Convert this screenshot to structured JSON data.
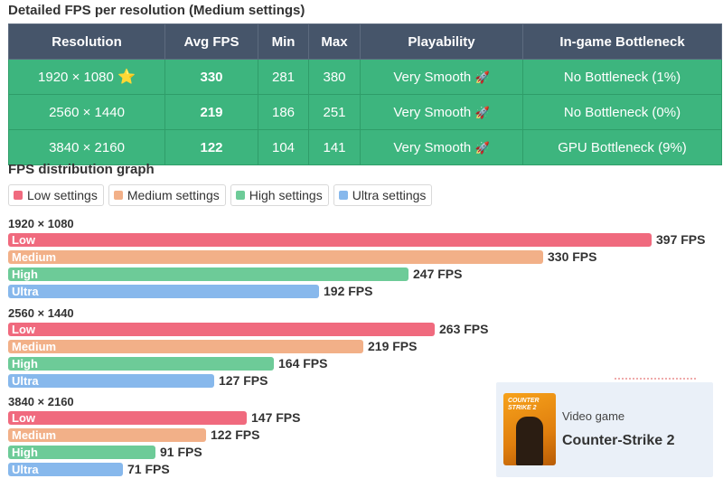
{
  "table_title": "Detailed FPS per resolution (Medium settings)",
  "table": {
    "headers": [
      "Resolution",
      "Avg FPS",
      "Min",
      "Max",
      "Playability",
      "In-game Bottleneck"
    ],
    "rows": [
      {
        "resolution": "1920 × 1080",
        "star": "⭐",
        "avg": "330",
        "min": "281",
        "max": "380",
        "playability": "Very Smooth",
        "rocket": "🚀",
        "bottleneck": "No Bottleneck (1%)"
      },
      {
        "resolution": "2560 × 1440",
        "star": "",
        "avg": "219",
        "min": "186",
        "max": "251",
        "playability": "Very Smooth",
        "rocket": "🚀",
        "bottleneck": "No Bottleneck (0%)"
      },
      {
        "resolution": "3840 × 2160",
        "star": "",
        "avg": "122",
        "min": "104",
        "max": "141",
        "playability": "Very Smooth",
        "rocket": "🚀",
        "bottleneck": "GPU Bottleneck (9%)"
      }
    ]
  },
  "graph_title": "FPS distribution graph",
  "colors": {
    "low": "#f06a7e",
    "medium": "#f2b088",
    "high": "#6dcb98",
    "ultra": "#87b8ec",
    "header": "#46556a",
    "row": "#3db57e"
  },
  "chart_data": {
    "type": "bar",
    "orientation": "horizontal",
    "title": "FPS distribution graph",
    "legend": [
      "Low settings",
      "Medium settings",
      "High settings",
      "Ultra settings"
    ],
    "legend_position": "top-left",
    "value_suffix": " FPS",
    "groups": [
      {
        "label": "1920 × 1080",
        "bars": [
          {
            "setting": "Low",
            "key": "low",
            "value": 397
          },
          {
            "setting": "Medium",
            "key": "medium",
            "value": 330
          },
          {
            "setting": "High",
            "key": "high",
            "value": 247
          },
          {
            "setting": "Ultra",
            "key": "ultra",
            "value": 192
          }
        ]
      },
      {
        "label": "2560 × 1440",
        "bars": [
          {
            "setting": "Low",
            "key": "low",
            "value": 263
          },
          {
            "setting": "Medium",
            "key": "medium",
            "value": 219
          },
          {
            "setting": "High",
            "key": "high",
            "value": 164
          },
          {
            "setting": "Ultra",
            "key": "ultra",
            "value": 127
          }
        ]
      },
      {
        "label": "3840 × 2160",
        "bars": [
          {
            "setting": "Low",
            "key": "low",
            "value": 147
          },
          {
            "setting": "Medium",
            "key": "medium",
            "value": 122
          },
          {
            "setting": "High",
            "key": "high",
            "value": 91
          },
          {
            "setting": "Ultra",
            "key": "ultra",
            "value": 71
          }
        ]
      }
    ]
  },
  "game_card": {
    "subtitle": "Video game",
    "name": "Counter-Strike 2",
    "cover_logo": "COUNTER STRIKE 2"
  }
}
